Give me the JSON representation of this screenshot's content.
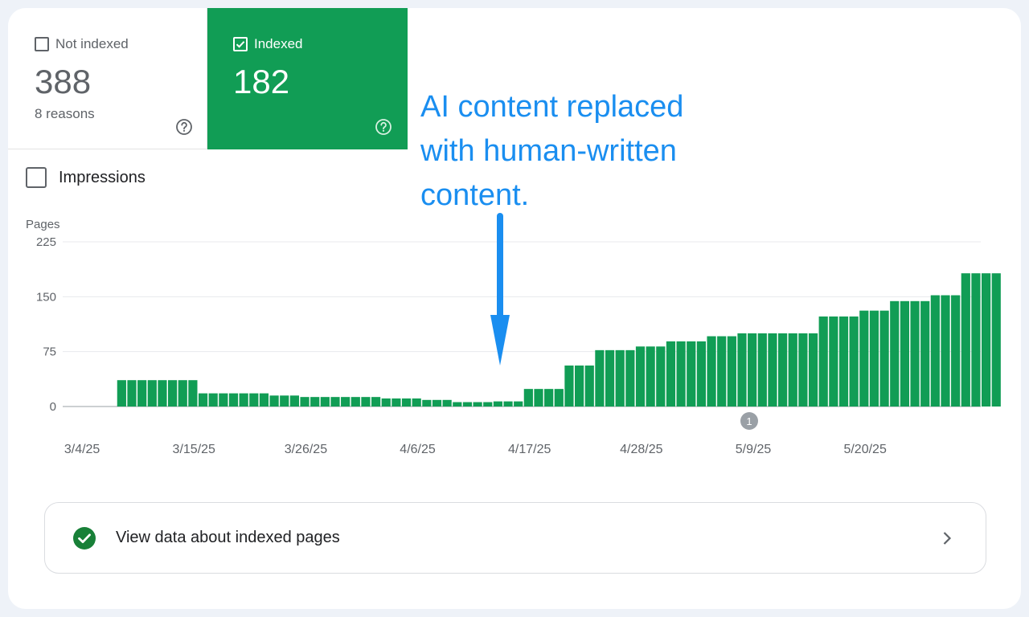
{
  "tabs": {
    "not_indexed": {
      "label": "Not indexed",
      "value": "388",
      "sub": "8 reasons",
      "checked": false
    },
    "indexed": {
      "label": "Indexed",
      "value": "182",
      "checked": true
    }
  },
  "impressions_label": "Impressions",
  "annotation": {
    "lines": [
      "AI content replaced",
      "with human-written",
      "content."
    ],
    "color": "#1a8ef0"
  },
  "view_row": {
    "label": "View data about indexed pages"
  },
  "colors": {
    "accent": "#119d55",
    "bar": "#119d55",
    "annotation": "#1a8ef0"
  },
  "chart_data": {
    "type": "bar",
    "ylabel": "Pages",
    "ylim": [
      0,
      225
    ],
    "yticks": [
      0,
      75,
      150,
      225
    ],
    "xtick_labels": [
      "3/4/25",
      "3/15/25",
      "3/26/25",
      "4/6/25",
      "4/17/25",
      "4/28/25",
      "5/9/25",
      "5/20/25"
    ],
    "grid": true,
    "event_marker": {
      "label": "1",
      "date": "5/9/25"
    },
    "series": [
      {
        "values": [
          0,
          0,
          0,
          0,
          0,
          36,
          36,
          36,
          36,
          36,
          36,
          36,
          36,
          18,
          18,
          18,
          18,
          18,
          18,
          18,
          15,
          15,
          15,
          13,
          13,
          13,
          13,
          13,
          13,
          13,
          13,
          11,
          11,
          11,
          11,
          9,
          9,
          9,
          6,
          6,
          6,
          6,
          7,
          7,
          7,
          24,
          24,
          24,
          24,
          56,
          56,
          56,
          77,
          77,
          77,
          77,
          82,
          82,
          82,
          89,
          89,
          89,
          89,
          96,
          96,
          96,
          100,
          100,
          100,
          100,
          100,
          100,
          100,
          100,
          123,
          123,
          123,
          123,
          131,
          131,
          131,
          144,
          144,
          144,
          144,
          152,
          152,
          152,
          182,
          182,
          182,
          182
        ]
      }
    ]
  }
}
